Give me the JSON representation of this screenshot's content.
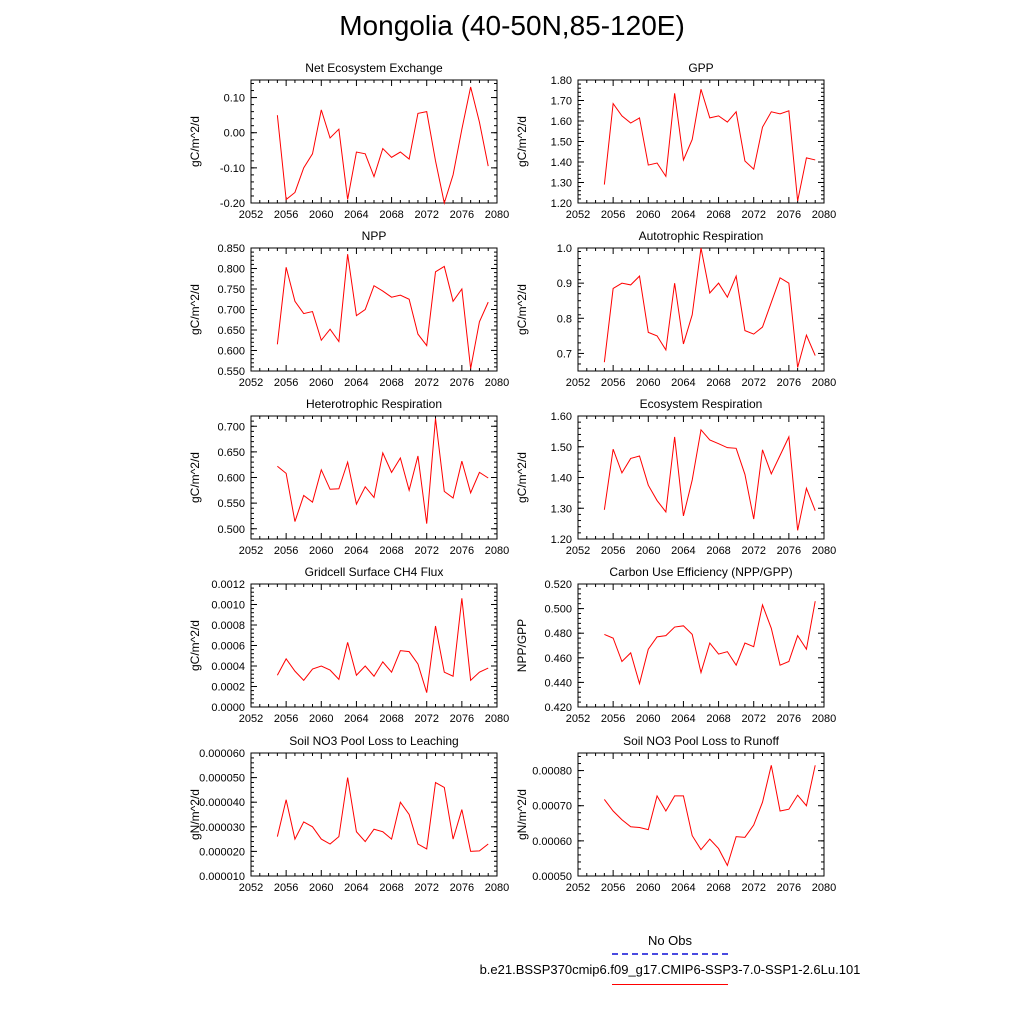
{
  "figure": {
    "title": "Mongolia (40-50N,85-120E)",
    "legend": {
      "obs_label": "No Obs",
      "obs_color": "#4a4ae0",
      "model_label": "b.e21.BSSP370cmip6.f09_g17.CMIP6-SSP3-7.0-SSP1-2.6Lu.101",
      "model_color": "#ff0000"
    }
  },
  "chart_data": [
    {
      "type": "line",
      "title": "Net Ecosystem Exchange",
      "ylabel": "gC/m^2/d",
      "xlim": [
        2052,
        2080
      ],
      "ylim": [
        -0.2,
        0.15
      ],
      "xticks": [
        "2052",
        "2056",
        "2060",
        "2064",
        "2068",
        "2072",
        "2076",
        "2080"
      ],
      "yticks": [
        "-0.20",
        "-0.10",
        "0.00",
        "0.10"
      ],
      "x": [
        2055,
        2056,
        2057,
        2058,
        2059,
        2060,
        2061,
        2062,
        2063,
        2064,
        2065,
        2066,
        2067,
        2068,
        2069,
        2070,
        2071,
        2072,
        2073,
        2074,
        2075,
        2076,
        2077,
        2078,
        2079
      ],
      "series": [
        {
          "color": "#ff0000",
          "values": [
            0.05,
            -0.19,
            -0.17,
            -0.1,
            -0.06,
            0.065,
            -0.015,
            0.01,
            -0.19,
            -0.055,
            -0.06,
            -0.125,
            -0.045,
            -0.07,
            -0.055,
            -0.075,
            0.055,
            0.06,
            -0.08,
            -0.2,
            -0.12,
            0.01,
            0.13,
            0.03,
            -0.095
          ]
        }
      ]
    },
    {
      "type": "line",
      "title": "GPP",
      "ylabel": "gC/m^2/d",
      "xlim": [
        2052,
        2080
      ],
      "ylim": [
        1.2,
        1.8
      ],
      "xticks": [
        "2052",
        "2056",
        "2060",
        "2064",
        "2068",
        "2072",
        "2076",
        "2080"
      ],
      "yticks": [
        "1.20",
        "1.30",
        "1.40",
        "1.50",
        "1.60",
        "1.70",
        "1.80"
      ],
      "x": [
        2055,
        2056,
        2057,
        2058,
        2059,
        2060,
        2061,
        2062,
        2063,
        2064,
        2065,
        2066,
        2067,
        2068,
        2069,
        2070,
        2071,
        2072,
        2073,
        2074,
        2075,
        2076,
        2077,
        2078,
        2079
      ],
      "series": [
        {
          "color": "#ff0000",
          "values": [
            1.29,
            1.685,
            1.625,
            1.59,
            1.615,
            1.385,
            1.395,
            1.33,
            1.735,
            1.41,
            1.51,
            1.755,
            1.615,
            1.625,
            1.595,
            1.645,
            1.405,
            1.365,
            1.57,
            1.645,
            1.635,
            1.65,
            1.21,
            1.42,
            1.41
          ]
        }
      ]
    },
    {
      "type": "line",
      "title": "NPP",
      "ylabel": "gC/m^2/d",
      "xlim": [
        2052,
        2080
      ],
      "ylim": [
        0.55,
        0.85
      ],
      "xticks": [
        "2052",
        "2056",
        "2060",
        "2064",
        "2068",
        "2072",
        "2076",
        "2080"
      ],
      "yticks": [
        "0.550",
        "0.600",
        "0.650",
        "0.700",
        "0.750",
        "0.800",
        "0.850"
      ],
      "x": [
        2055,
        2056,
        2057,
        2058,
        2059,
        2060,
        2061,
        2062,
        2063,
        2064,
        2065,
        2066,
        2067,
        2068,
        2069,
        2070,
        2071,
        2072,
        2073,
        2074,
        2075,
        2076,
        2077,
        2078,
        2079
      ],
      "series": [
        {
          "color": "#ff0000",
          "values": [
            0.615,
            0.803,
            0.72,
            0.69,
            0.695,
            0.625,
            0.652,
            0.622,
            0.835,
            0.685,
            0.7,
            0.758,
            0.745,
            0.73,
            0.735,
            0.725,
            0.64,
            0.612,
            0.792,
            0.805,
            0.72,
            0.75,
            0.556,
            0.67,
            0.718
          ]
        }
      ]
    },
    {
      "type": "line",
      "title": "Autotrophic Respiration",
      "ylabel": "gC/m^2/d",
      "xlim": [
        2052,
        2080
      ],
      "ylim": [
        0.65,
        1.0
      ],
      "xticks": [
        "2052",
        "2056",
        "2060",
        "2064",
        "2068",
        "2072",
        "2076",
        "2080"
      ],
      "yticks": [
        "0.7",
        "0.8",
        "0.9",
        "1.0"
      ],
      "x": [
        2055,
        2056,
        2057,
        2058,
        2059,
        2060,
        2061,
        2062,
        2063,
        2064,
        2065,
        2066,
        2067,
        2068,
        2069,
        2070,
        2071,
        2072,
        2073,
        2074,
        2075,
        2076,
        2077,
        2078,
        2079
      ],
      "series": [
        {
          "color": "#ff0000",
          "values": [
            0.675,
            0.885,
            0.9,
            0.895,
            0.92,
            0.76,
            0.75,
            0.71,
            0.9,
            0.727,
            0.81,
            1.0,
            0.872,
            0.9,
            0.86,
            0.92,
            0.765,
            0.755,
            0.775,
            0.845,
            0.915,
            0.9,
            0.66,
            0.752,
            0.694
          ]
        }
      ]
    },
    {
      "type": "line",
      "title": "Heterotrophic Respiration",
      "ylabel": "gC/m^2/d",
      "xlim": [
        2052,
        2080
      ],
      "ylim": [
        0.48,
        0.72
      ],
      "xticks": [
        "2052",
        "2056",
        "2060",
        "2064",
        "2068",
        "2072",
        "2076",
        "2080"
      ],
      "yticks": [
        "0.500",
        "0.550",
        "0.600",
        "0.650",
        "0.700"
      ],
      "x": [
        2055,
        2056,
        2057,
        2058,
        2059,
        2060,
        2061,
        2062,
        2063,
        2064,
        2065,
        2066,
        2067,
        2068,
        2069,
        2070,
        2071,
        2072,
        2073,
        2074,
        2075,
        2076,
        2077,
        2078,
        2079
      ],
      "series": [
        {
          "color": "#ff0000",
          "values": [
            0.622,
            0.608,
            0.514,
            0.565,
            0.552,
            0.615,
            0.577,
            0.578,
            0.63,
            0.548,
            0.582,
            0.561,
            0.648,
            0.61,
            0.638,
            0.575,
            0.642,
            0.51,
            0.715,
            0.573,
            0.56,
            0.632,
            0.57,
            0.61,
            0.599
          ]
        }
      ]
    },
    {
      "type": "line",
      "title": "Ecosystem Respiration",
      "ylabel": "gC/m^2/d",
      "xlim": [
        2052,
        2080
      ],
      "ylim": [
        1.2,
        1.6
      ],
      "xticks": [
        "2052",
        "2056",
        "2060",
        "2064",
        "2068",
        "2072",
        "2076",
        "2080"
      ],
      "yticks": [
        "1.20",
        "1.30",
        "1.40",
        "1.50",
        "1.60"
      ],
      "x": [
        2055,
        2056,
        2057,
        2058,
        2059,
        2060,
        2061,
        2062,
        2063,
        2064,
        2065,
        2066,
        2067,
        2068,
        2069,
        2070,
        2071,
        2072,
        2073,
        2074,
        2075,
        2076,
        2077,
        2078,
        2079
      ],
      "series": [
        {
          "color": "#ff0000",
          "values": [
            1.295,
            1.492,
            1.415,
            1.462,
            1.47,
            1.375,
            1.325,
            1.288,
            1.532,
            1.275,
            1.392,
            1.555,
            1.522,
            1.51,
            1.497,
            1.495,
            1.41,
            1.265,
            1.49,
            1.412,
            1.472,
            1.532,
            1.228,
            1.365,
            1.292
          ]
        }
      ]
    },
    {
      "type": "line",
      "title": "Gridcell Surface CH4 Flux",
      "ylabel": "gC/m^2/d",
      "xlim": [
        2052,
        2080
      ],
      "ylim": [
        0,
        0.0012
      ],
      "xticks": [
        "2052",
        "2056",
        "2060",
        "2064",
        "2068",
        "2072",
        "2076",
        "2080"
      ],
      "yticks": [
        "0.0000",
        "0.0002",
        "0.0004",
        "0.0006",
        "0.0008",
        "0.0010",
        "0.0012"
      ],
      "x": [
        2055,
        2056,
        2057,
        2058,
        2059,
        2060,
        2061,
        2062,
        2063,
        2064,
        2065,
        2066,
        2067,
        2068,
        2069,
        2070,
        2071,
        2072,
        2073,
        2074,
        2075,
        2076,
        2077,
        2078,
        2079
      ],
      "series": [
        {
          "color": "#ff0000",
          "values": [
            0.00031,
            0.00047,
            0.00035,
            0.00026,
            0.00037,
            0.0004,
            0.00036,
            0.00027,
            0.00063,
            0.00031,
            0.0004,
            0.0003,
            0.00044,
            0.00034,
            0.00055,
            0.00054,
            0.00042,
            0.00014,
            0.00079,
            0.00034,
            0.0003,
            0.00106,
            0.00026,
            0.00034,
            0.00038
          ]
        }
      ]
    },
    {
      "type": "line",
      "title": "Carbon Use Efficiency (NPP/GPP)",
      "ylabel": "NPP/GPP",
      "xlim": [
        2052,
        2080
      ],
      "ylim": [
        0.42,
        0.52
      ],
      "xticks": [
        "2052",
        "2056",
        "2060",
        "2064",
        "2068",
        "2072",
        "2076",
        "2080"
      ],
      "yticks": [
        "0.420",
        "0.440",
        "0.460",
        "0.480",
        "0.500",
        "0.520"
      ],
      "x": [
        2055,
        2056,
        2057,
        2058,
        2059,
        2060,
        2061,
        2062,
        2063,
        2064,
        2065,
        2066,
        2067,
        2068,
        2069,
        2070,
        2071,
        2072,
        2073,
        2074,
        2075,
        2076,
        2077,
        2078,
        2079
      ],
      "series": [
        {
          "color": "#ff0000",
          "values": [
            0.479,
            0.476,
            0.457,
            0.464,
            0.439,
            0.467,
            0.477,
            0.478,
            0.485,
            0.486,
            0.479,
            0.448,
            0.472,
            0.463,
            0.465,
            0.454,
            0.472,
            0.469,
            0.503,
            0.484,
            0.454,
            0.457,
            0.478,
            0.467,
            0.506
          ]
        }
      ]
    },
    {
      "type": "line",
      "title": "Soil NO3 Pool Loss to Leaching",
      "ylabel": "gN/m^2/d",
      "xlim": [
        2052,
        2080
      ],
      "ylim": [
        1e-05,
        6e-05
      ],
      "xticks": [
        "2052",
        "2056",
        "2060",
        "2064",
        "2068",
        "2072",
        "2076",
        "2080"
      ],
      "yticks": [
        "0.000010",
        "0.000020",
        "0.000030",
        "0.000040",
        "0.000050",
        "0.000060"
      ],
      "x": [
        2055,
        2056,
        2057,
        2058,
        2059,
        2060,
        2061,
        2062,
        2063,
        2064,
        2065,
        2066,
        2067,
        2068,
        2069,
        2070,
        2071,
        2072,
        2073,
        2074,
        2075,
        2076,
        2077,
        2078,
        2079
      ],
      "series": [
        {
          "color": "#ff0000",
          "values": [
            2.6e-05,
            4.1e-05,
            2.5e-05,
            3.2e-05,
            3e-05,
            2.5e-05,
            2.3e-05,
            2.6e-05,
            5e-05,
            2.8e-05,
            2.4e-05,
            2.9e-05,
            2.8e-05,
            2.5e-05,
            4e-05,
            3.5e-05,
            2.3e-05,
            2.1e-05,
            4.8e-05,
            4.6e-05,
            2.5e-05,
            3.7e-05,
            2e-05,
            2.02e-05,
            2.3e-05
          ]
        }
      ]
    },
    {
      "type": "line",
      "title": "Soil NO3 Pool Loss to Runoff",
      "ylabel": "gN/m^2/d",
      "xlim": [
        2052,
        2080
      ],
      "ylim": [
        0.0005,
        0.00085
      ],
      "xticks": [
        "2052",
        "2056",
        "2060",
        "2064",
        "2068",
        "2072",
        "2076",
        "2080"
      ],
      "yticks": [
        "0.00050",
        "0.00060",
        "0.00070",
        "0.00080"
      ],
      "x": [
        2055,
        2056,
        2057,
        2058,
        2059,
        2060,
        2061,
        2062,
        2063,
        2064,
        2065,
        2066,
        2067,
        2068,
        2069,
        2070,
        2071,
        2072,
        2073,
        2074,
        2075,
        2076,
        2077,
        2078,
        2079
      ],
      "series": [
        {
          "color": "#ff0000",
          "values": [
            0.000718,
            0.000685,
            0.00066,
            0.00064,
            0.000638,
            0.000632,
            0.000728,
            0.000685,
            0.000728,
            0.000728,
            0.000615,
            0.000575,
            0.000605,
            0.000578,
            0.00053,
            0.000612,
            0.00061,
            0.000645,
            0.00071,
            0.000815,
            0.000685,
            0.00069,
            0.00073,
            0.0007,
            0.000815
          ]
        }
      ]
    }
  ]
}
